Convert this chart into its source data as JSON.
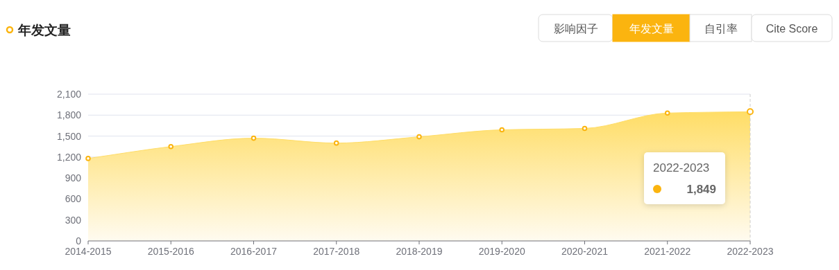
{
  "chart_data": {
    "type": "area",
    "title": "年发文量",
    "categories": [
      "2014-2015",
      "2015-2016",
      "2016-2017",
      "2017-2018",
      "2018-2019",
      "2019-2020",
      "2020-2021",
      "2021-2022",
      "2022-2023"
    ],
    "values": [
      1180,
      1350,
      1470,
      1400,
      1490,
      1590,
      1610,
      1830,
      1849
    ],
    "color": "#fbb40f",
    "ylim": [
      0,
      2100
    ],
    "yticks": [
      {
        "value": 0,
        "label": "0"
      },
      {
        "value": 300,
        "label": "300"
      },
      {
        "value": 600,
        "label": "600"
      },
      {
        "value": 900,
        "label": "900"
      },
      {
        "value": 1200,
        "label": "1,200"
      },
      {
        "value": 1500,
        "label": "1,500"
      },
      {
        "value": 1800,
        "label": "1,800"
      },
      {
        "value": 2100,
        "label": "2,100"
      }
    ],
    "grid": "y",
    "marker": "circle",
    "annotations": [
      "影响因子",
      "年发文量",
      "自引率",
      "Cite Score",
      "2022-2023",
      "1,849"
    ]
  }
}
